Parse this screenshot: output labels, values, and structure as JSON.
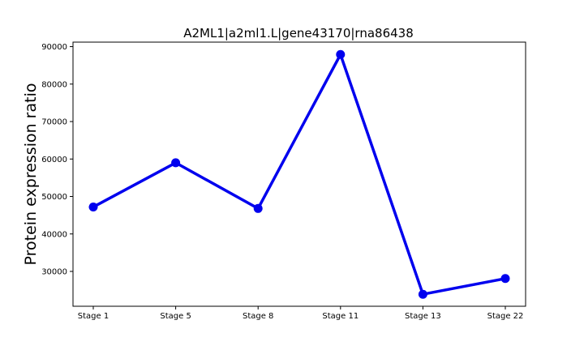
{
  "chart_data": {
    "type": "line",
    "title": "A2ML1|a2ml1.L|gene43170|rna86438",
    "xlabel": "",
    "ylabel": "Protein expression ratio",
    "categories": [
      "Stage 1",
      "Stage 5",
      "Stage 8",
      "Stage 11",
      "Stage 13",
      "Stage 22"
    ],
    "series": [
      {
        "values": [
          47200,
          59000,
          46800,
          87900,
          23900,
          28100
        ],
        "color": "#0000ee"
      }
    ],
    "ylim": [
      20700,
      91200
    ],
    "yticks": [
      30000,
      40000,
      50000,
      60000,
      70000,
      80000,
      90000
    ],
    "ytick_labels": [
      "30000",
      "40000",
      "50000",
      "60000",
      "70000",
      "80000",
      "90000"
    ],
    "grid": false,
    "legend": "none"
  }
}
